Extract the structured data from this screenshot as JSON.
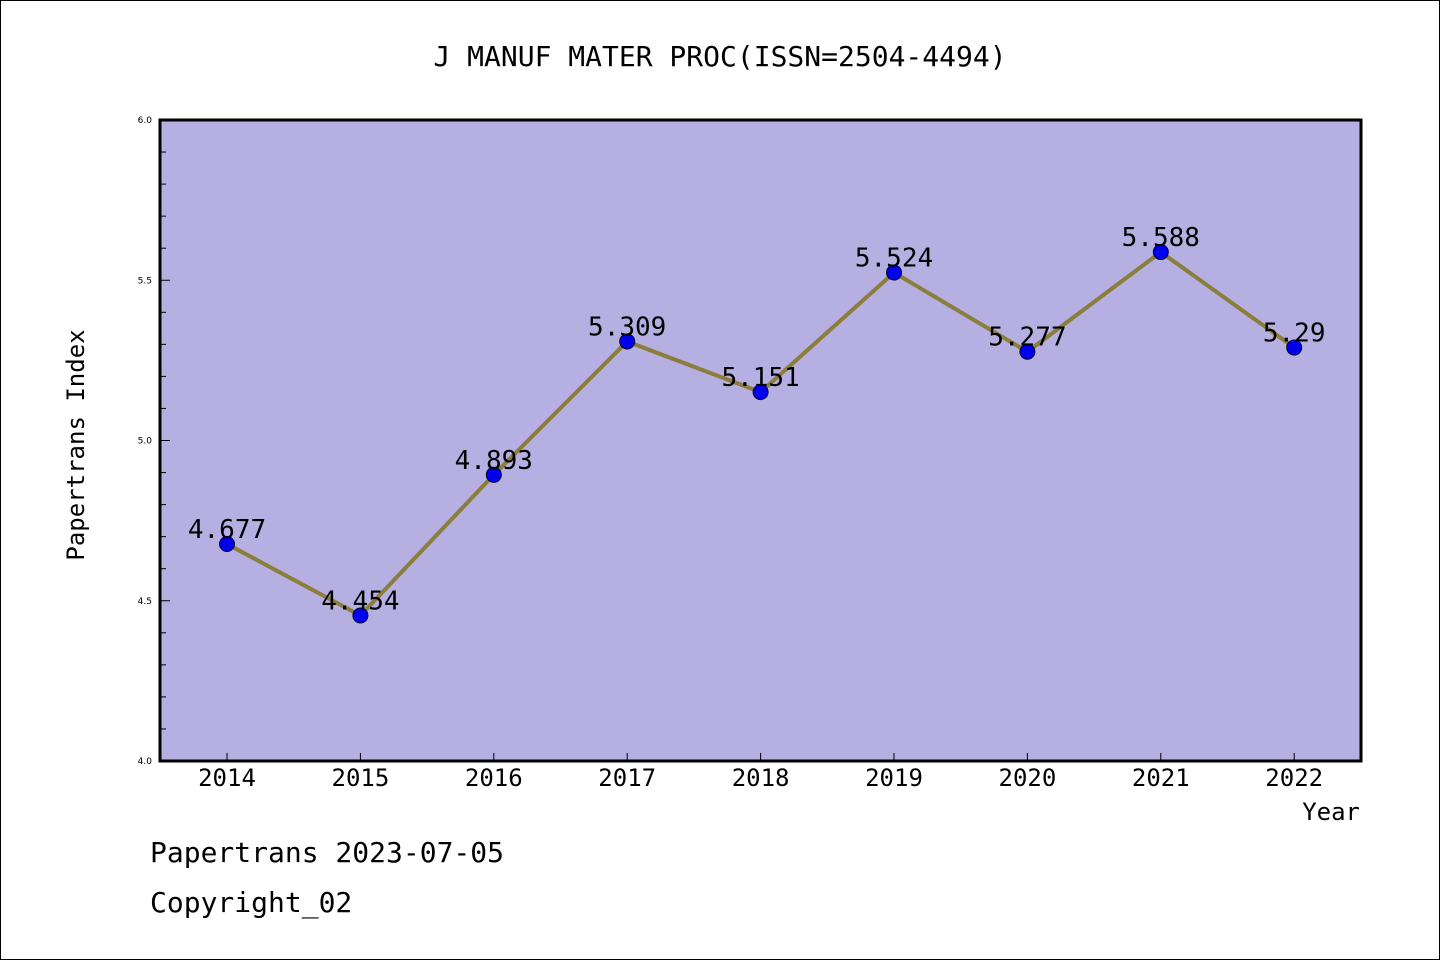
{
  "chart_data": {
    "type": "line",
    "title": "J MANUF MATER PROC(ISSN=2504-4494)",
    "xlabel": "Year",
    "ylabel": "Papertrans Index",
    "categories": [
      "2014",
      "2015",
      "2016",
      "2017",
      "2018",
      "2019",
      "2020",
      "2021",
      "2022"
    ],
    "series": [
      {
        "values": [
          4.677,
          4.454,
          4.893,
          5.309,
          5.151,
          5.524,
          5.277,
          5.588,
          5.29
        ],
        "labels": [
          "4.677",
          "4.454",
          "4.893",
          "5.309",
          "5.151",
          "5.524",
          "5.277",
          "5.588",
          "5.29"
        ],
        "line_color": "#8b7d3a",
        "marker_color": "#0000ee"
      }
    ],
    "ylim": [
      4.0,
      6.0
    ],
    "yticks": [
      "4.0",
      "4.5",
      "5.0",
      "5.5",
      "6.0"
    ],
    "grid": false,
    "plot_background": "#b5afe2"
  },
  "footer": {
    "line1": "Papertrans 2023-07-05",
    "line2": "Copyright_02"
  }
}
